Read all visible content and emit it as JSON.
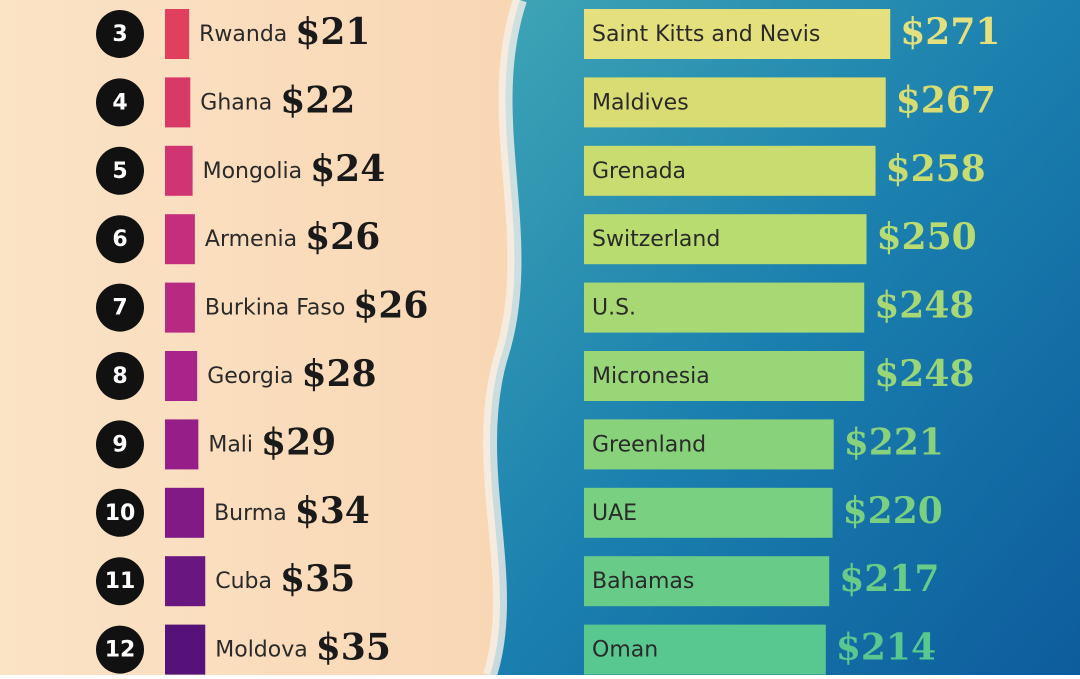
{
  "chart_data": [
    {
      "type": "bar",
      "ranks": [
        3,
        4,
        5,
        6,
        7,
        8,
        9,
        10,
        11,
        12
      ],
      "categories": [
        "Rwanda",
        "Ghana",
        "Mongolia",
        "Armenia",
        "Burkina Faso",
        "Georgia",
        "Mali",
        "Burma",
        "Cuba",
        "Moldova"
      ],
      "values": [
        21,
        22,
        24,
        26,
        26,
        28,
        29,
        34,
        35,
        35
      ],
      "value_labels": [
        "$21",
        "$22",
        "$24",
        "$26",
        "$26",
        "$28",
        "$29",
        "$34",
        "$35",
        "$35"
      ],
      "colors": [
        "#e0405e",
        "#d83a68",
        "#d03472",
        "#c42e7c",
        "#b82a82",
        "#a8248a",
        "#961e88",
        "#821a86",
        "#6a1680",
        "#561278"
      ]
    },
    {
      "type": "bar",
      "categories": [
        "Saint Kitts and Nevis",
        "Maldives",
        "Grenada",
        "Switzerland",
        "U.S.",
        "Micronesia",
        "Greenland",
        "UAE",
        "Bahamas",
        "Oman"
      ],
      "values": [
        271,
        267,
        258,
        250,
        248,
        248,
        221,
        220,
        217,
        214
      ],
      "value_labels": [
        "$271",
        "$267",
        "$258",
        "$250",
        "$248",
        "$248",
        "$221",
        "$220",
        "$217",
        "$214"
      ],
      "colors": [
        "#e4e07e",
        "#d8dc72",
        "#c8dc70",
        "#b8dc70",
        "#a8d874",
        "#98d678",
        "#88d27c",
        "#78d080",
        "#68cc88",
        "#58c890"
      ]
    }
  ]
}
